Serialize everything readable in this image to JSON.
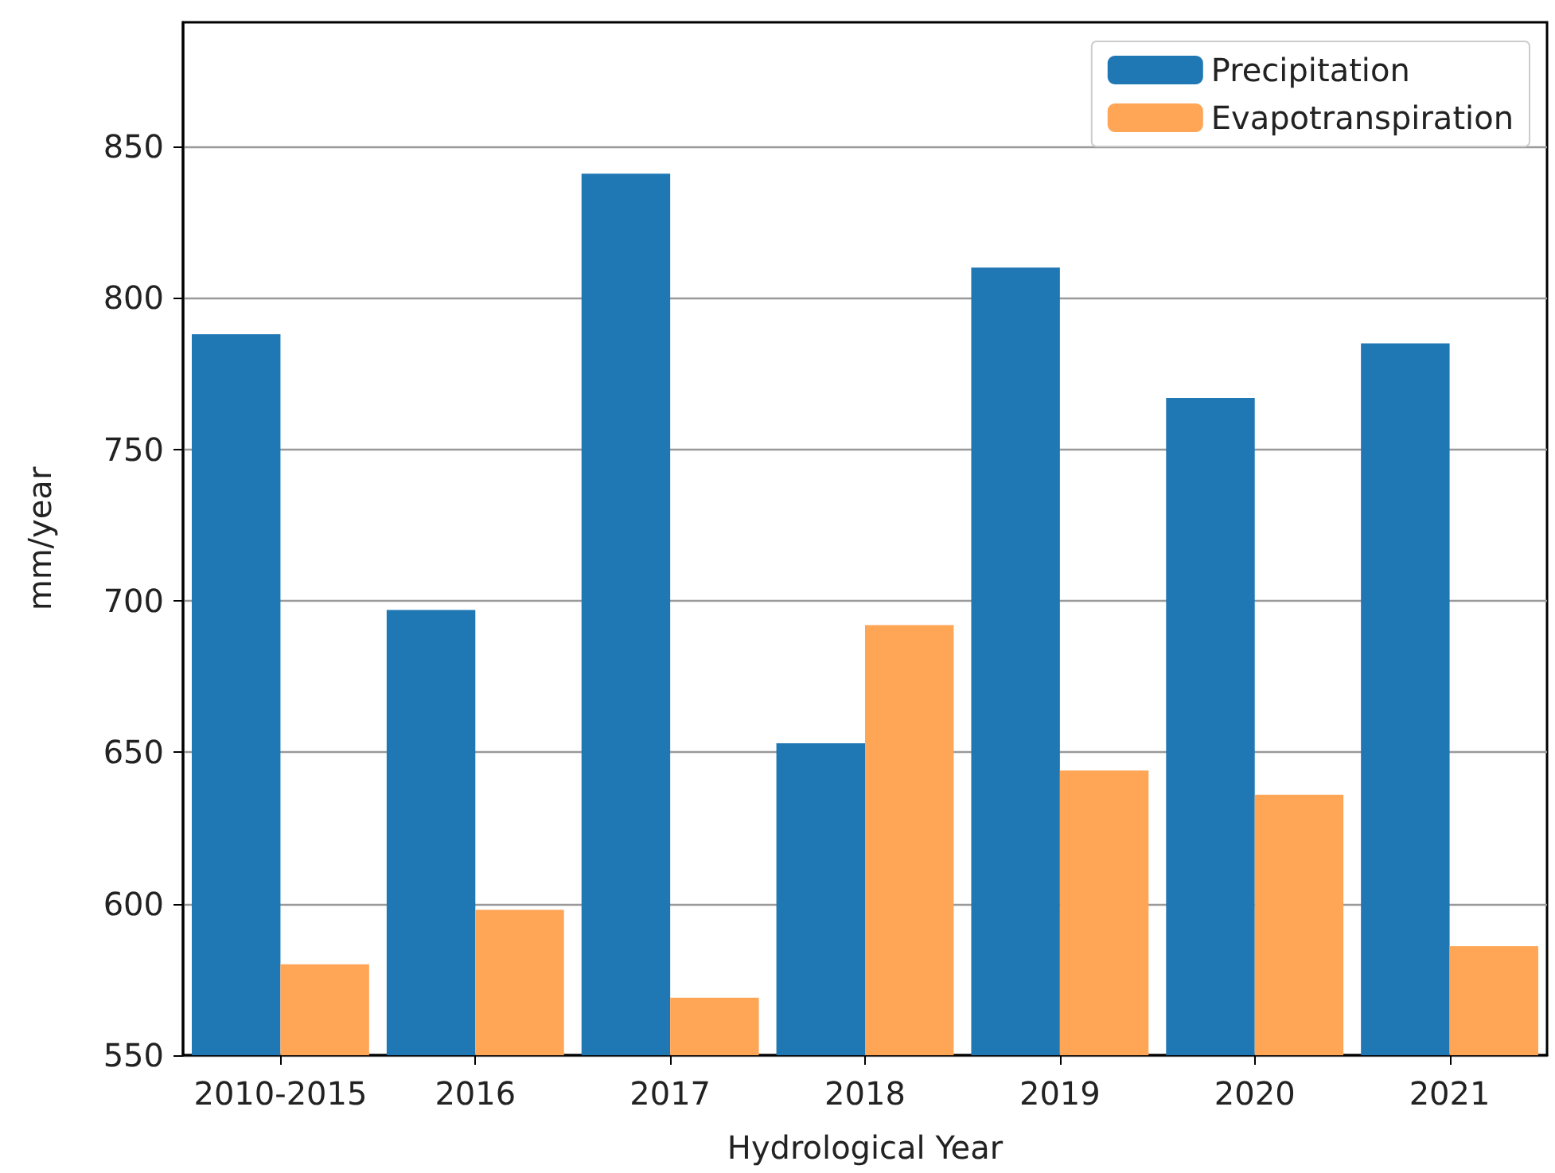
{
  "chart_data": {
    "type": "bar",
    "xlabel": "Hydrological Year",
    "ylabel": "mm/year",
    "categories": [
      "2010-2015",
      "2016",
      "2017",
      "2018",
      "2019",
      "2020",
      "2021"
    ],
    "series": [
      {
        "name": "Precipitation",
        "color": "#1f77b4",
        "values": [
          788,
          697,
          841,
          653,
          810,
          767,
          785
        ]
      },
      {
        "name": "Evapotranspiration",
        "color": "#ffa556",
        "values": [
          580,
          598,
          569,
          692,
          644,
          636,
          586
        ]
      }
    ],
    "ylim": [
      550,
      891
    ],
    "yticks": [
      550,
      600,
      650,
      700,
      750,
      800,
      850
    ],
    "grid": "y",
    "legend": "top right"
  }
}
